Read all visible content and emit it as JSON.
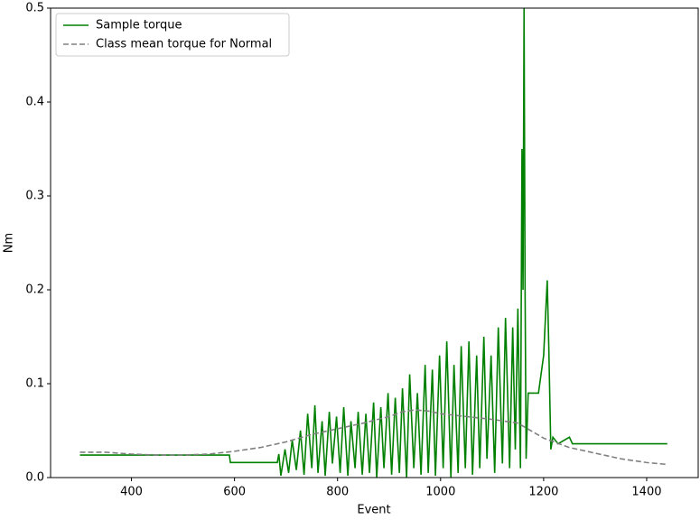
{
  "chart_data": {
    "type": "line",
    "xlabel": "Event",
    "ylabel": "Nm",
    "xlim": [
      243,
      1500
    ],
    "xticks": [
      400,
      600,
      800,
      1000,
      1200,
      1400
    ],
    "ylim": [
      0,
      0.5
    ],
    "yticks": [
      {
        "value": 0,
        "label": "0.0"
      },
      0.1,
      0.2,
      0.3,
      0.4,
      0.5
    ],
    "legend": "upper left",
    "series": [
      {
        "name": "Sample torque",
        "color": "#008000",
        "style": "solid",
        "x": [
          300,
          590,
          592,
          683,
          686,
          690,
          698,
          705,
          712,
          720,
          728,
          735,
          742,
          750,
          756,
          762,
          770,
          776,
          784,
          790,
          798,
          805,
          812,
          820,
          826,
          834,
          840,
          848,
          855,
          862,
          870,
          876,
          884,
          890,
          898,
          905,
          912,
          920,
          926,
          934,
          940,
          948,
          955,
          962,
          970,
          976,
          984,
          990,
          998,
          1005,
          1012,
          1020,
          1026,
          1034,
          1040,
          1048,
          1055,
          1062,
          1070,
          1076,
          1084,
          1090,
          1098,
          1105,
          1112,
          1120,
          1126,
          1134,
          1140,
          1145,
          1150,
          1155,
          1158,
          1160,
          1162,
          1164,
          1166,
          1170,
          1190,
          1200,
          1207,
          1210,
          1214,
          1218,
          1228,
          1250,
          1256,
          1440
        ],
        "values": [
          0.024,
          0.024,
          0.016,
          0.016,
          0.025,
          0.002,
          0.03,
          0.005,
          0.04,
          0.008,
          0.05,
          0.003,
          0.068,
          0.01,
          0.077,
          0.005,
          0.06,
          0.002,
          0.07,
          0.015,
          0.065,
          0.005,
          0.075,
          0.002,
          0.06,
          0.01,
          0.07,
          0.003,
          0.068,
          0.005,
          0.08,
          0,
          0.075,
          0.01,
          0.09,
          0.003,
          0.085,
          0.005,
          0.095,
          0,
          0.11,
          0.01,
          0.09,
          0.003,
          0.12,
          0.005,
          0.115,
          0.002,
          0.13,
          0.01,
          0.145,
          0,
          0.12,
          0.005,
          0.14,
          0.01,
          0.145,
          0.003,
          0.13,
          0.01,
          0.15,
          0.02,
          0.13,
          0.005,
          0.16,
          0.015,
          0.17,
          0.01,
          0.16,
          0.03,
          0.18,
          0.01,
          0.35,
          0.2,
          0.5,
          0.2,
          0.02,
          0.09,
          0.09,
          0.13,
          0.21,
          0.14,
          0.03,
          0.043,
          0.036,
          0.043,
          0.036,
          0.036
        ]
      },
      {
        "name": "Class mean torque for Normal",
        "color": "#808080",
        "style": "dashed",
        "x": [
          300,
          350,
          400,
          450,
          500,
          550,
          600,
          650,
          700,
          750,
          800,
          850,
          900,
          925,
          950,
          975,
          1000,
          1050,
          1100,
          1150,
          1175,
          1200,
          1250,
          1300,
          1350,
          1400,
          1440
        ],
        "values": [
          0.027,
          0.027,
          0.025,
          0.024,
          0.024,
          0.025,
          0.028,
          0.032,
          0.038,
          0.046,
          0.052,
          0.058,
          0.065,
          0.07,
          0.072,
          0.071,
          0.068,
          0.065,
          0.062,
          0.058,
          0.05,
          0.042,
          0.032,
          0.026,
          0.02,
          0.016,
          0.014
        ]
      }
    ]
  }
}
